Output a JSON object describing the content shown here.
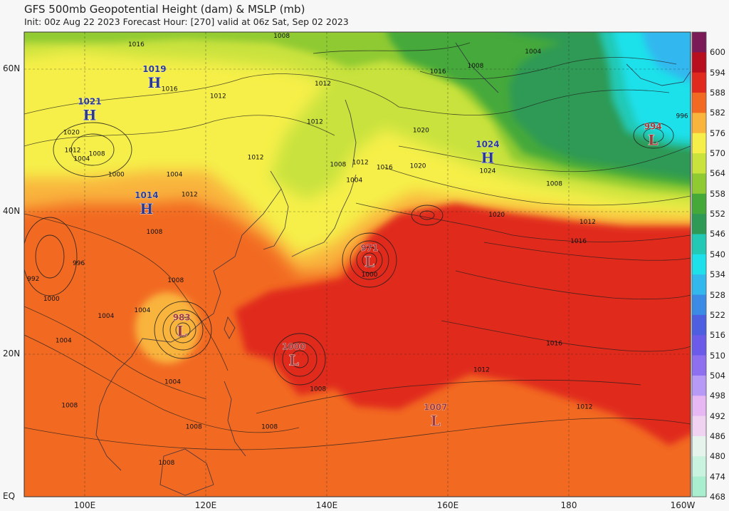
{
  "header": {
    "title": "GFS 500mb Geopotential Height (dam) & MSLP (mb)",
    "subtitle": "Init: 00z Aug 22 2023   Forecast Hour: [270]   valid at 06z Sat, Sep 02 2023"
  },
  "axes": {
    "lat_ticks": [
      "60N",
      "40N",
      "20N",
      "EQ"
    ],
    "lon_ticks": [
      "100E",
      "120E",
      "140E",
      "160E",
      "180",
      "160W"
    ]
  },
  "colorbar": {
    "unit": "dam",
    "levels": [
      {
        "v": "600",
        "c": "#7a1b58"
      },
      {
        "v": "594",
        "c": "#b80f1f"
      },
      {
        "v": "588",
        "c": "#e02a1e"
      },
      {
        "v": "582",
        "c": "#f26a22"
      },
      {
        "v": "576",
        "c": "#f9b43c"
      },
      {
        "v": "570",
        "c": "#f6ef4a"
      },
      {
        "v": "564",
        "c": "#c9e23c"
      },
      {
        "v": "558",
        "c": "#8fca33"
      },
      {
        "v": "552",
        "c": "#45a93a"
      },
      {
        "v": "546",
        "c": "#2f9a55"
      },
      {
        "v": "540",
        "c": "#24c9b6"
      },
      {
        "v": "534",
        "c": "#1ee0ea"
      },
      {
        "v": "528",
        "c": "#33b8ee"
      },
      {
        "v": "522",
        "c": "#3b8be6"
      },
      {
        "v": "516",
        "c": "#4d5fe0"
      },
      {
        "v": "510",
        "c": "#6c5be8"
      },
      {
        "v": "504",
        "c": "#8d6ff0"
      },
      {
        "v": "498",
        "c": "#b79af5"
      },
      {
        "v": "492",
        "c": "#e6b7f2"
      },
      {
        "v": "486",
        "c": "#f0d3f0"
      },
      {
        "v": "480",
        "c": "#e6f2ec"
      },
      {
        "v": "474",
        "c": "#c9f2df"
      },
      {
        "v": "468",
        "c": "#a8eecf"
      }
    ]
  },
  "map_data": {
    "extent": {
      "lon_min": 90,
      "lon_max": 200,
      "lat_min": 0,
      "lat_max": 65
    },
    "pressure_centers": [
      {
        "type": "H",
        "value": "1021",
        "lon": 100.8,
        "lat": 53.5
      },
      {
        "type": "H",
        "value": "1019",
        "lon": 111.5,
        "lat": 58.0
      },
      {
        "type": "H",
        "value": "1014",
        "lon": 110.2,
        "lat": 40.4
      },
      {
        "type": "H",
        "value": "1024",
        "lon": 166.5,
        "lat": 47.5
      },
      {
        "type": "L",
        "value": "994",
        "lon": 193.8,
        "lat": 50.0
      },
      {
        "type": "L",
        "value": "971",
        "lon": 147.0,
        "lat": 33.0
      },
      {
        "type": "L",
        "value": "983",
        "lon": 116.0,
        "lat": 23.3
      },
      {
        "type": "L",
        "value": "1000",
        "lon": 134.5,
        "lat": 19.2
      },
      {
        "type": "L",
        "value": "1007",
        "lon": 157.9,
        "lat": 10.7
      }
    ],
    "isobar_labels": [
      {
        "t": "1016",
        "lon": 108.5,
        "lat": 63.0
      },
      {
        "t": "1008",
        "lon": 132.5,
        "lat": 64.2
      },
      {
        "t": "1012",
        "lon": 122.0,
        "lat": 55.8
      },
      {
        "t": "1016",
        "lon": 114.0,
        "lat": 56.8
      },
      {
        "t": "1012",
        "lon": 139.3,
        "lat": 57.5
      },
      {
        "t": "1016",
        "lon": 158.3,
        "lat": 59.2
      },
      {
        "t": "1008",
        "lon": 164.5,
        "lat": 60.0
      },
      {
        "t": "1004",
        "lon": 174.0,
        "lat": 62.0
      },
      {
        "t": "1020",
        "lon": 97.8,
        "lat": 50.7
      },
      {
        "t": "1012",
        "lon": 98.0,
        "lat": 48.2
      },
      {
        "t": "1008",
        "lon": 102.0,
        "lat": 47.7
      },
      {
        "t": "1004",
        "lon": 99.5,
        "lat": 47.0
      },
      {
        "t": "1000",
        "lon": 105.2,
        "lat": 44.8
      },
      {
        "t": "1004",
        "lon": 114.8,
        "lat": 44.8
      },
      {
        "t": "1012",
        "lon": 128.2,
        "lat": 47.2
      },
      {
        "t": "1012",
        "lon": 138.0,
        "lat": 52.2
      },
      {
        "t": "1008",
        "lon": 141.8,
        "lat": 46.2
      },
      {
        "t": "1012",
        "lon": 145.5,
        "lat": 46.5
      },
      {
        "t": "1004",
        "lon": 144.5,
        "lat": 44.0
      },
      {
        "t": "1016",
        "lon": 149.5,
        "lat": 45.8
      },
      {
        "t": "1020",
        "lon": 155.5,
        "lat": 51.0
      },
      {
        "t": "1020",
        "lon": 155.0,
        "lat": 46.0
      },
      {
        "t": "1024",
        "lon": 166.5,
        "lat": 45.3
      },
      {
        "t": "1008",
        "lon": 177.5,
        "lat": 43.5
      },
      {
        "t": "1020",
        "lon": 168.0,
        "lat": 39.2
      },
      {
        "t": "1012",
        "lon": 183.0,
        "lat": 38.2
      },
      {
        "t": "1016",
        "lon": 181.5,
        "lat": 35.5
      },
      {
        "t": "996",
        "lon": 198.6,
        "lat": 53.0
      },
      {
        "t": "1012",
        "lon": 117.3,
        "lat": 42.0
      },
      {
        "t": "1008",
        "lon": 111.5,
        "lat": 36.8
      },
      {
        "t": "996",
        "lon": 99.0,
        "lat": 32.4
      },
      {
        "t": "992",
        "lon": 91.5,
        "lat": 30.2
      },
      {
        "t": "1000",
        "lon": 94.5,
        "lat": 27.4
      },
      {
        "t": "1008",
        "lon": 115.0,
        "lat": 30.0
      },
      {
        "t": "1004",
        "lon": 103.5,
        "lat": 25.0
      },
      {
        "t": "1004",
        "lon": 109.5,
        "lat": 25.8
      },
      {
        "t": "1004",
        "lon": 96.5,
        "lat": 21.6
      },
      {
        "t": "1004",
        "lon": 114.5,
        "lat": 15.8
      },
      {
        "t": "1008",
        "lon": 97.5,
        "lat": 12.5
      },
      {
        "t": "1008",
        "lon": 118.0,
        "lat": 9.5
      },
      {
        "t": "1008",
        "lon": 113.5,
        "lat": 4.5
      },
      {
        "t": "1008",
        "lon": 130.5,
        "lat": 9.5
      },
      {
        "t": "1008",
        "lon": 138.5,
        "lat": 14.8
      },
      {
        "t": "1000",
        "lon": 147.0,
        "lat": 30.8
      },
      {
        "t": "1016",
        "lon": 177.5,
        "lat": 21.2
      },
      {
        "t": "1012",
        "lon": 165.5,
        "lat": 17.5
      },
      {
        "t": "1012",
        "lon": 182.5,
        "lat": 12.3
      }
    ]
  }
}
